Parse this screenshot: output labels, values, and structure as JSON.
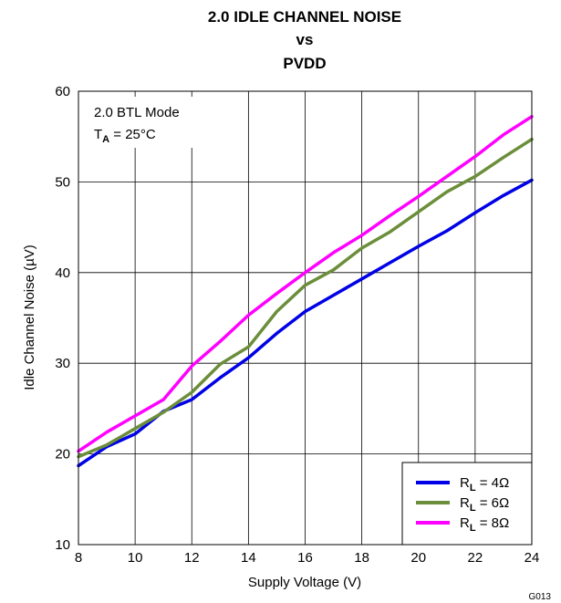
{
  "chart_data": {
    "type": "line",
    "title_lines": [
      "2.0 IDLE CHANNEL NOISE",
      "vs",
      "PVDD"
    ],
    "xlabel": "Supply Voltage (V)",
    "ylabel": "Idle Channel Noise (µV)",
    "xlim": [
      8,
      24
    ],
    "ylim": [
      10,
      60
    ],
    "xticks": [
      8,
      10,
      12,
      14,
      16,
      18,
      20,
      22,
      24
    ],
    "yticks": [
      10,
      20,
      30,
      40,
      50,
      60
    ],
    "grid": true,
    "legend_position": "bottom-right",
    "annotations": {
      "mode": "2.0 BTL Mode",
      "temp_prefix": "T",
      "temp_sub": "A",
      "temp_value": " = 25°C"
    },
    "figure_id": "G013",
    "series": [
      {
        "name": "RL = 4Ω",
        "label_main": "R",
        "label_sub": "L",
        "label_tail": " = 4Ω",
        "color": "#0000e6",
        "x": [
          8,
          9,
          10,
          11,
          12,
          13,
          14,
          15,
          16,
          17,
          18,
          19,
          20,
          21,
          22,
          23,
          24
        ],
        "y": [
          18.7,
          20.8,
          22.2,
          24.7,
          26.0,
          28.4,
          30.6,
          33.3,
          35.7,
          37.5,
          39.3,
          41.1,
          42.9,
          44.6,
          46.6,
          48.5,
          50.2
        ]
      },
      {
        "name": "RL = 6Ω",
        "label_main": "R",
        "label_sub": "L",
        "label_tail": " = 6Ω",
        "color": "#6b8e3a",
        "x": [
          8,
          9,
          10,
          11,
          12,
          13,
          14,
          15,
          16,
          17,
          18,
          19,
          20,
          21,
          22,
          23,
          24
        ],
        "y": [
          19.7,
          21.0,
          22.8,
          24.6,
          26.8,
          29.9,
          31.8,
          35.7,
          38.6,
          40.3,
          42.7,
          44.5,
          46.7,
          48.9,
          50.6,
          52.7,
          54.7
        ]
      },
      {
        "name": "RL = 8Ω",
        "label_main": "R",
        "label_sub": "L",
        "label_tail": " = 8Ω",
        "color": "#ff00ff",
        "x": [
          8,
          9,
          10,
          11,
          12,
          13,
          14,
          15,
          16,
          17,
          18,
          19,
          20,
          21,
          22,
          23,
          24
        ],
        "y": [
          20.3,
          22.4,
          24.2,
          26.0,
          29.7,
          32.4,
          35.3,
          37.7,
          40.0,
          42.2,
          44.1,
          46.3,
          48.4,
          50.6,
          52.8,
          55.2,
          57.2
        ]
      }
    ]
  }
}
